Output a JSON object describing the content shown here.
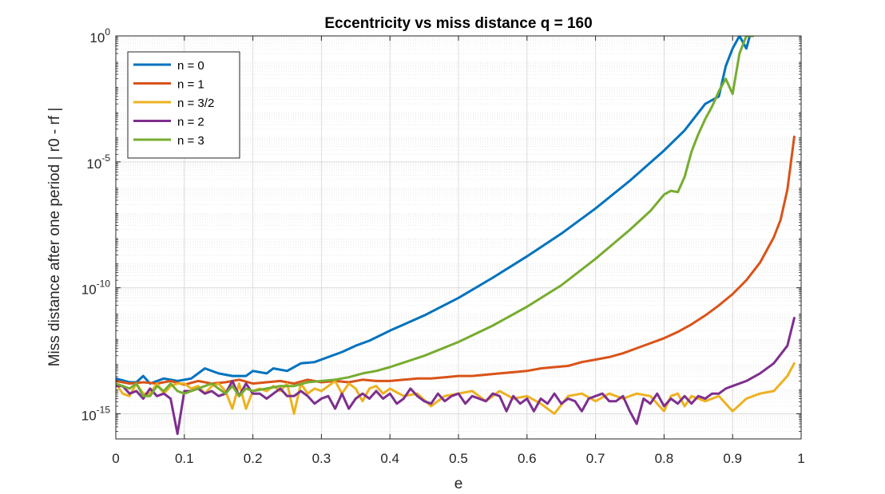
{
  "chart_data": {
    "type": "line",
    "title": "Eccentricity vs miss distance q = 160",
    "xlabel": "e",
    "ylabel": "Miss distance after one period | r0 - rf |",
    "xlim": [
      0,
      1
    ],
    "ylim_log10": [
      -16,
      0
    ],
    "y_scale": "log",
    "grid": true,
    "minor_grid": true,
    "legend_position": "top-left",
    "x_ticks": [
      0,
      0.1,
      0.2,
      0.3,
      0.4,
      0.5,
      0.6,
      0.7,
      0.8,
      0.9,
      1
    ],
    "x_tick_labels": [
      "0",
      "0.1",
      "0.2",
      "0.3",
      "0.4",
      "0.5",
      "0.6",
      "0.7",
      "0.8",
      "0.9",
      "1"
    ],
    "y_ticks": [
      {
        "base": "10",
        "exp": "0",
        "log": 0
      },
      {
        "base": "10",
        "exp": "-5",
        "log": -5
      },
      {
        "base": "10",
        "exp": "-10",
        "log": -10
      },
      {
        "base": "10",
        "exp": "-15",
        "log": -15
      }
    ],
    "series": [
      {
        "name": "n = 0",
        "color": "#0072BD",
        "x": [
          0,
          0.02,
          0.03,
          0.04,
          0.05,
          0.07,
          0.09,
          0.11,
          0.13,
          0.15,
          0.17,
          0.19,
          0.2,
          0.22,
          0.23,
          0.25,
          0.27,
          0.29,
          0.31,
          0.33,
          0.35,
          0.37,
          0.4,
          0.45,
          0.5,
          0.55,
          0.6,
          0.65,
          0.7,
          0.75,
          0.8,
          0.83,
          0.86,
          0.88,
          0.89,
          0.9,
          0.91,
          0.92,
          0.925
        ],
        "y_log10": [
          -13.6,
          -13.75,
          -13.75,
          -13.5,
          -13.8,
          -13.6,
          -13.7,
          -13.6,
          -13.2,
          -13.4,
          -13.5,
          -13.5,
          -13.3,
          -13.4,
          -13.2,
          -13.3,
          -13.0,
          -12.95,
          -12.75,
          -12.55,
          -12.3,
          -12.1,
          -11.7,
          -11.1,
          -10.4,
          -9.6,
          -8.75,
          -7.85,
          -6.85,
          -5.75,
          -4.55,
          -3.75,
          -2.7,
          -2.4,
          -1.2,
          -0.5,
          0,
          -0.5,
          0.1
        ]
      },
      {
        "name": "n = 1",
        "color": "#D95319",
        "x": [
          0,
          0.02,
          0.04,
          0.06,
          0.08,
          0.1,
          0.12,
          0.14,
          0.16,
          0.18,
          0.2,
          0.22,
          0.24,
          0.26,
          0.28,
          0.3,
          0.32,
          0.34,
          0.36,
          0.38,
          0.4,
          0.42,
          0.44,
          0.46,
          0.48,
          0.5,
          0.52,
          0.54,
          0.56,
          0.58,
          0.6,
          0.62,
          0.64,
          0.66,
          0.68,
          0.7,
          0.72,
          0.74,
          0.76,
          0.78,
          0.8,
          0.82,
          0.84,
          0.86,
          0.88,
          0.9,
          0.92,
          0.94,
          0.96,
          0.97,
          0.98,
          0.99
        ],
        "y_log10": [
          -13.7,
          -13.8,
          -13.75,
          -13.8,
          -13.7,
          -13.85,
          -13.7,
          -13.8,
          -13.75,
          -13.65,
          -13.8,
          -13.75,
          -13.7,
          -13.8,
          -13.65,
          -13.75,
          -13.7,
          -13.75,
          -13.65,
          -13.7,
          -13.7,
          -13.65,
          -13.6,
          -13.6,
          -13.55,
          -13.5,
          -13.5,
          -13.45,
          -13.4,
          -13.35,
          -13.3,
          -13.2,
          -13.15,
          -13.1,
          -12.95,
          -12.85,
          -12.75,
          -12.6,
          -12.4,
          -12.2,
          -12.0,
          -11.75,
          -11.45,
          -11.1,
          -10.7,
          -10.25,
          -9.7,
          -9.0,
          -8.0,
          -7.3,
          -6.1,
          -4.0
        ]
      },
      {
        "name": "n = 3/2",
        "color": "#EDB120",
        "x": [
          0,
          0.01,
          0.02,
          0.03,
          0.04,
          0.05,
          0.06,
          0.07,
          0.08,
          0.09,
          0.1,
          0.11,
          0.12,
          0.13,
          0.14,
          0.15,
          0.16,
          0.17,
          0.18,
          0.19,
          0.2,
          0.21,
          0.22,
          0.23,
          0.24,
          0.25,
          0.26,
          0.27,
          0.28,
          0.29,
          0.3,
          0.31,
          0.32,
          0.33,
          0.34,
          0.35,
          0.36,
          0.37,
          0.38,
          0.39,
          0.4,
          0.42,
          0.44,
          0.46,
          0.48,
          0.5,
          0.52,
          0.54,
          0.56,
          0.58,
          0.6,
          0.62,
          0.64,
          0.66,
          0.68,
          0.7,
          0.72,
          0.74,
          0.76,
          0.78,
          0.8,
          0.81,
          0.82,
          0.83,
          0.84,
          0.86,
          0.88,
          0.9,
          0.92,
          0.94,
          0.96,
          0.97,
          0.98,
          0.99
        ],
        "y_log10": [
          -13.8,
          -14.2,
          -14.3,
          -13.8,
          -14.2,
          -14.2,
          -13.8,
          -14.2,
          -13.9,
          -13.8,
          -13.8,
          -14.0,
          -13.9,
          -14.2,
          -13.9,
          -13.8,
          -14.1,
          -14.8,
          -13.8,
          -14.8,
          -14.1,
          -14.0,
          -14.1,
          -13.9,
          -14.1,
          -13.8,
          -15.0,
          -13.8,
          -14.2,
          -14.0,
          -14.1,
          -13.9,
          -13.7,
          -14.2,
          -13.8,
          -14.0,
          -14.5,
          -14.0,
          -13.9,
          -14.2,
          -14.0,
          -14.3,
          -14.2,
          -14.7,
          -14.3,
          -14.2,
          -14.1,
          -14.5,
          -14.1,
          -14.4,
          -14.3,
          -14.6,
          -15.0,
          -14.3,
          -14.2,
          -14.5,
          -14.2,
          -14.4,
          -14.2,
          -14.3,
          -14.9,
          -14.3,
          -14.2,
          -14.7,
          -14.3,
          -14.5,
          -14.3,
          -14.9,
          -14.4,
          -14.2,
          -14.1,
          -13.8,
          -13.5,
          -13.0
        ]
      },
      {
        "name": "n = 2",
        "color": "#7E2F8E",
        "x": [
          0,
          0.01,
          0.02,
          0.03,
          0.04,
          0.05,
          0.06,
          0.07,
          0.08,
          0.09,
          0.1,
          0.11,
          0.12,
          0.13,
          0.14,
          0.15,
          0.16,
          0.17,
          0.18,
          0.19,
          0.2,
          0.21,
          0.22,
          0.23,
          0.24,
          0.25,
          0.26,
          0.27,
          0.28,
          0.29,
          0.3,
          0.31,
          0.32,
          0.33,
          0.34,
          0.35,
          0.36,
          0.37,
          0.38,
          0.39,
          0.4,
          0.41,
          0.42,
          0.43,
          0.44,
          0.45,
          0.46,
          0.47,
          0.48,
          0.49,
          0.5,
          0.51,
          0.52,
          0.53,
          0.54,
          0.55,
          0.56,
          0.57,
          0.58,
          0.59,
          0.6,
          0.61,
          0.62,
          0.63,
          0.64,
          0.65,
          0.66,
          0.67,
          0.68,
          0.69,
          0.7,
          0.71,
          0.72,
          0.73,
          0.74,
          0.75,
          0.76,
          0.77,
          0.78,
          0.79,
          0.8,
          0.81,
          0.82,
          0.83,
          0.84,
          0.85,
          0.86,
          0.87,
          0.88,
          0.89,
          0.9,
          0.92,
          0.94,
          0.96,
          0.98,
          0.99
        ],
        "y_log10": [
          -13.9,
          -13.9,
          -14.2,
          -14.1,
          -14.4,
          -14.0,
          -14.3,
          -14.2,
          -14.4,
          -15.8,
          -14.1,
          -14.1,
          -14.0,
          -14.2,
          -14.1,
          -14.3,
          -14.2,
          -13.7,
          -14.3,
          -13.8,
          -14.2,
          -14.2,
          -14.4,
          -14.2,
          -14.0,
          -14.3,
          -14.3,
          -14.1,
          -14.3,
          -14.6,
          -14.4,
          -14.3,
          -14.8,
          -14.2,
          -14.8,
          -14.4,
          -14.2,
          -14.4,
          -14.1,
          -14.4,
          -14.2,
          -14.6,
          -14.4,
          -14.0,
          -14.3,
          -14.5,
          -14.6,
          -14.2,
          -14.5,
          -14.3,
          -14.2,
          -14.6,
          -14.3,
          -14.4,
          -14.5,
          -14.2,
          -14.3,
          -14.9,
          -14.3,
          -14.6,
          -14.4,
          -14.9,
          -14.4,
          -14.6,
          -14.2,
          -14.6,
          -14.4,
          -14.5,
          -14.9,
          -14.4,
          -14.3,
          -14.2,
          -14.5,
          -14.5,
          -14.3,
          -14.9,
          -15.4,
          -14.4,
          -14.6,
          -14.2,
          -14.7,
          -14.4,
          -14.6,
          -14.3,
          -14.6,
          -14.3,
          -14.4,
          -14.2,
          -14.2,
          -14.0,
          -13.9,
          -13.7,
          -13.4,
          -13.0,
          -12.3,
          -11.2
        ]
      },
      {
        "name": "n = 3",
        "color": "#77AC30",
        "x": [
          0,
          0.01,
          0.02,
          0.03,
          0.04,
          0.05,
          0.06,
          0.07,
          0.08,
          0.09,
          0.1,
          0.11,
          0.12,
          0.13,
          0.14,
          0.15,
          0.16,
          0.17,
          0.18,
          0.19,
          0.2,
          0.22,
          0.24,
          0.26,
          0.28,
          0.3,
          0.32,
          0.34,
          0.36,
          0.38,
          0.4,
          0.45,
          0.5,
          0.55,
          0.6,
          0.65,
          0.7,
          0.75,
          0.78,
          0.8,
          0.81,
          0.82,
          0.83,
          0.84,
          0.85,
          0.86,
          0.87,
          0.88,
          0.89,
          0.9,
          0.91,
          0.92,
          0.93
        ],
        "y_log10": [
          -13.8,
          -13.9,
          -14.0,
          -13.8,
          -14.3,
          -14.3,
          -13.9,
          -14.1,
          -13.8,
          -14.1,
          -14.2,
          -14.1,
          -14.0,
          -13.9,
          -13.8,
          -14.0,
          -14.2,
          -13.9,
          -14.3,
          -14.0,
          -14.1,
          -14.0,
          -13.9,
          -13.9,
          -13.75,
          -13.7,
          -13.65,
          -13.55,
          -13.4,
          -13.3,
          -13.15,
          -12.7,
          -12.15,
          -11.5,
          -10.75,
          -9.9,
          -8.85,
          -7.7,
          -6.95,
          -6.3,
          -6.15,
          -6.2,
          -5.6,
          -4.6,
          -3.9,
          -3.3,
          -2.8,
          -2.2,
          -1.7,
          -2.3,
          -0.7,
          0.15,
          0.65
        ]
      }
    ]
  }
}
